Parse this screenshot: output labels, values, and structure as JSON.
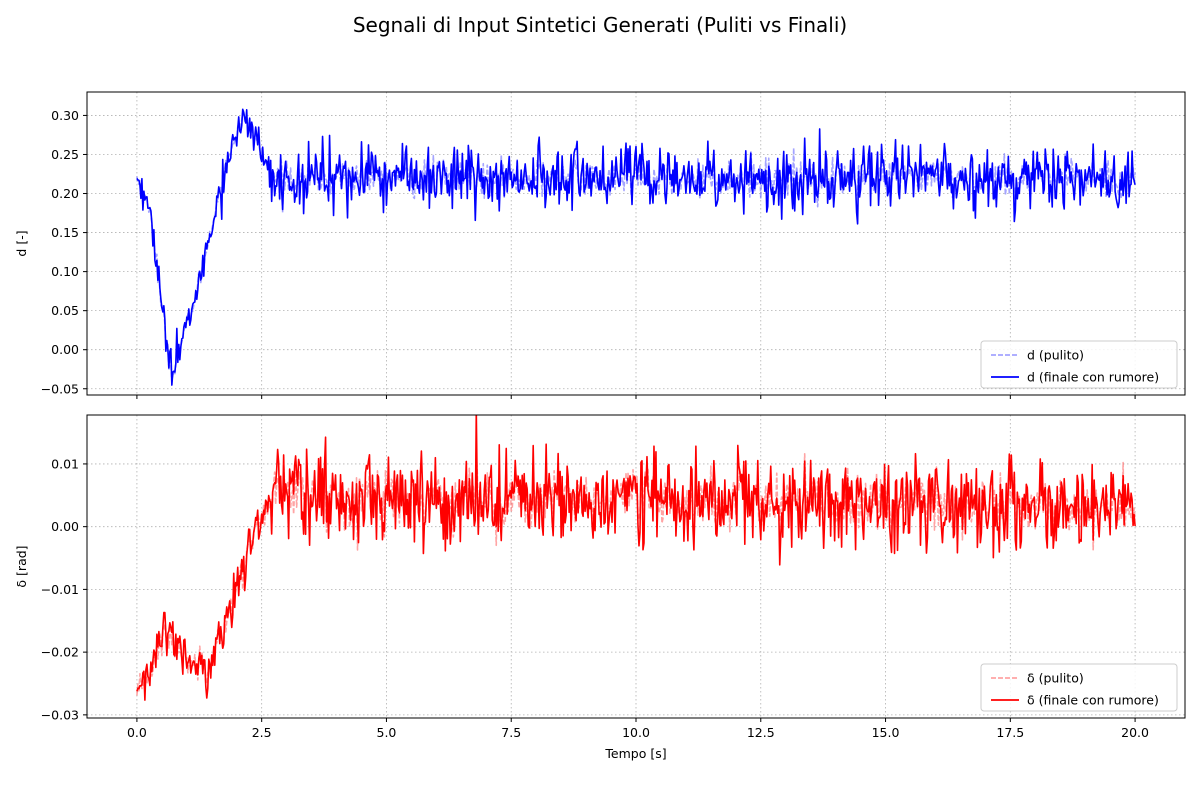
{
  "chart_data": {
    "type": "line",
    "title": "Segnali di Input Sintetici Generati (Puliti vs Finali)",
    "xlabel": "Tempo [s]",
    "xlim": [
      -1.0,
      21.0
    ],
    "xticks": [
      0.0,
      2.5,
      5.0,
      7.5,
      10.0,
      12.5,
      15.0,
      17.5,
      20.0
    ],
    "xtick_labels": [
      "0.0",
      "2.5",
      "5.0",
      "7.5",
      "10.0",
      "12.5",
      "15.0",
      "17.5",
      "20.0"
    ],
    "grid": true,
    "panels": [
      {
        "ylabel": "d [-]",
        "ylim": [
          -0.058,
          0.33
        ],
        "yticks": [
          -0.05,
          0.0,
          0.05,
          0.1,
          0.15,
          0.2,
          0.25,
          0.3
        ],
        "ytick_labels": [
          "−0.05",
          "0.00",
          "0.05",
          "0.10",
          "0.15",
          "0.20",
          "0.25",
          "0.30"
        ],
        "show_xtick_labels": false,
        "legend_position": "lower-right",
        "envelope_x": [
          0.0,
          0.3,
          0.5,
          0.7,
          0.85,
          1.0,
          1.3,
          1.6,
          1.9,
          2.1,
          2.4,
          2.7,
          20.0
        ],
        "envelope_y": [
          0.22,
          0.17,
          0.05,
          -0.03,
          0.0,
          0.03,
          0.1,
          0.19,
          0.26,
          0.3,
          0.27,
          0.22,
          0.22
        ],
        "noise_after": 2.7,
        "clean_noise": 0.016,
        "final_noise": 0.022,
        "pre_noise": 0.01,
        "series": [
          {
            "name": "d (pulito)",
            "color": "#5a5aff",
            "style": "dashed",
            "opacity": 0.55
          },
          {
            "name": "d (finale con rumore)",
            "color": "#0000ff",
            "style": "solid",
            "opacity": 1.0
          }
        ]
      },
      {
        "ylabel": "δ [rad]",
        "ylim": [
          -0.0305,
          0.0178
        ],
        "yticks": [
          -0.03,
          -0.02,
          -0.01,
          0.0,
          0.01
        ],
        "ytick_labels": [
          "−0.03",
          "−0.02",
          "−0.01",
          "0.00",
          "0.01"
        ],
        "show_xtick_labels": true,
        "legend_position": "lower-right",
        "envelope_x": [
          0.0,
          0.2,
          0.5,
          0.7,
          1.0,
          1.4,
          1.8,
          2.1,
          2.4,
          2.7,
          20.0
        ],
        "envelope_y": [
          -0.028,
          -0.024,
          -0.018,
          -0.018,
          -0.021,
          -0.022,
          -0.015,
          -0.007,
          0.0,
          0.005,
          0.003
        ],
        "noise_after": 2.7,
        "clean_noise": 0.003,
        "final_noise": 0.004,
        "pre_noise": 0.0018,
        "series": [
          {
            "name": "δ (pulito)",
            "color": "#ff5a5a",
            "style": "dashed",
            "opacity": 0.55
          },
          {
            "name": "δ (finale con rumore)",
            "color": "#ff0000",
            "style": "solid",
            "opacity": 1.0
          }
        ]
      }
    ]
  }
}
